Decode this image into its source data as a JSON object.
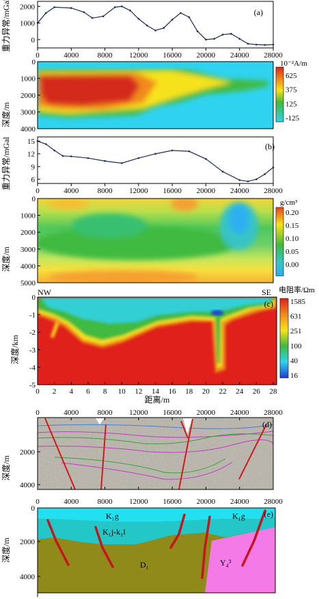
{
  "panels": {
    "a": {
      "label": "(a)",
      "gravity": {
        "ylabel": "重力异常/mGal",
        "y_ticks": [
          "2000",
          "1000",
          "0"
        ],
        "x_ticks": [
          "0",
          "4000",
          "8000",
          "12000",
          "16000",
          "20000",
          "24000",
          "28000"
        ],
        "chart_data": {
          "type": "line",
          "x": [
            0,
            1000,
            2000,
            4000,
            5500,
            6500,
            7800,
            9200,
            10000,
            11000,
            12000,
            13000,
            14000,
            15000,
            16000,
            17000,
            18000,
            19000,
            20000,
            21000,
            22000,
            23000,
            24000,
            25000,
            26000,
            27000,
            28000
          ],
          "y": [
            1000,
            1600,
            1950,
            1900,
            1650,
            1300,
            1400,
            1950,
            2000,
            1750,
            1250,
            850,
            550,
            700,
            1200,
            1600,
            1350,
            500,
            0,
            50,
            300,
            350,
            50,
            -250,
            -300,
            -320,
            -300
          ],
          "xlim": [
            0,
            28000
          ],
          "ylim": [
            -500,
            2300
          ]
        }
      },
      "susceptibility": {
        "ylabel": "深度/m",
        "unit": "10⁻²A/m",
        "y_ticks": [
          "0",
          "1000",
          "2000",
          "3000",
          "4000"
        ],
        "colorbar_ticks": [
          "625",
          "375",
          "125",
          "-125"
        ]
      }
    },
    "b": {
      "label": "(b)",
      "gravity": {
        "ylabel": "重力异常/mGal",
        "y_ticks": [
          "15",
          "12",
          "9",
          "6"
        ],
        "x_ticks": [
          "0",
          "4000",
          "8000",
          "12000",
          "16000",
          "20000",
          "24000",
          "28000"
        ],
        "chart_data": {
          "type": "line",
          "x": [
            0,
            1000,
            2000,
            3000,
            4000,
            6000,
            8000,
            10000,
            12000,
            14000,
            16000,
            18000,
            20000,
            22000,
            24000,
            25000,
            26000,
            27000,
            28000
          ],
          "y": [
            15,
            14.3,
            12.8,
            11.5,
            11.4,
            11.0,
            10.3,
            9.8,
            11.0,
            12.0,
            12.8,
            12.6,
            10.8,
            7.8,
            5.8,
            5.5,
            6.0,
            7.2,
            8.8
          ],
          "xlim": [
            0,
            28000
          ],
          "ylim": [
            5,
            16
          ]
        }
      },
      "density": {
        "ylabel": "深度/m",
        "unit": "g/cm³",
        "y_ticks": [
          "0",
          "1000",
          "2000",
          "3000",
          "4000",
          "5000"
        ],
        "colorbar_ticks": [
          "0.20",
          "0.15",
          "0.10",
          "0.05",
          "0.00"
        ]
      }
    },
    "c": {
      "label": "(c)",
      "nw": "NW",
      "se": "SE",
      "ylabel": "深度/km",
      "xlabel": "距离/m",
      "unit": "电阻率/Ωm",
      "y_ticks": [
        "0",
        "-1",
        "-2",
        "-3",
        "-4",
        "-5"
      ],
      "x_ticks": [
        "0",
        "2",
        "4",
        "6",
        "8",
        "10",
        "12",
        "14",
        "16",
        "18",
        "20",
        "22",
        "24",
        "26",
        "28"
      ],
      "colorbar_ticks": [
        "1585",
        "631",
        "251",
        "100",
        "40",
        "16"
      ]
    },
    "d": {
      "label": "(d)",
      "ylabel": "深度/m",
      "top_ticks": [
        "0",
        "4000",
        "8000",
        "12000",
        "16000",
        "20000",
        "24000",
        "28000"
      ],
      "bottom_ticks": [
        "0",
        "4000",
        "8000",
        "12000",
        "16000",
        "20000",
        "24000",
        "28000"
      ],
      "y_ticks": [
        "2000",
        "4000"
      ]
    },
    "e": {
      "label": "(e)",
      "ylabel": "深度/m",
      "y_ticks": [
        "0",
        "2000",
        "4000"
      ],
      "units": {
        "k1g_left": "K₁g",
        "k1g_right": "K₁g",
        "k1j": "K₁j-k₁l",
        "d1": "D₁",
        "y4": "Y₄³"
      }
    }
  },
  "colors": {
    "red": "#e23a1c",
    "orange": "#f08a1a",
    "yellow": "#f6e21a",
    "green": "#3fba3f",
    "cyan": "#2fd3f0",
    "blue": "#1e3fd0",
    "olive": "#8f8a1a",
    "magenta": "#f47ae8",
    "fault": "#c4161c",
    "k1g": "#22e0f0",
    "k1j": "#23c7c7"
  }
}
